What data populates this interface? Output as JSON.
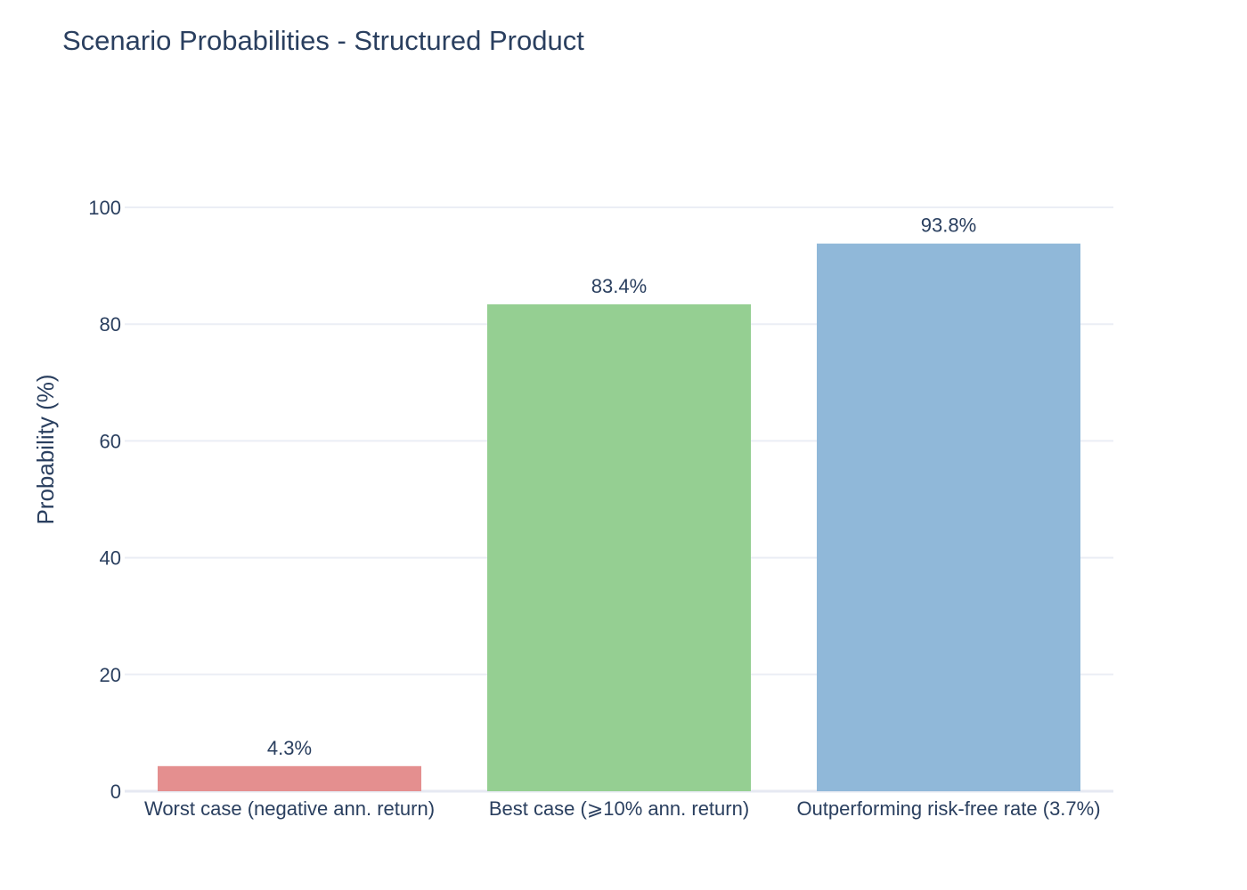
{
  "chart_data": {
    "type": "bar",
    "title": "Scenario Probabilities - Structured Product",
    "xlabel": "",
    "ylabel": "Probability (%)",
    "categories": [
      "Worst case (negative ann. return)",
      "Best case (⩾10% ann. return)",
      "Outperforming risk-free rate (3.7%)"
    ],
    "values": [
      4.3,
      83.4,
      93.8
    ],
    "data_labels": [
      "4.3%",
      "83.4%",
      "93.8%"
    ],
    "colors": [
      "#e48f8f",
      "#95cf92",
      "#90b8d9"
    ],
    "ylim": [
      0,
      100
    ],
    "yticks": [
      0,
      20,
      40,
      60,
      80,
      100
    ],
    "grid": true,
    "legend": "none"
  }
}
